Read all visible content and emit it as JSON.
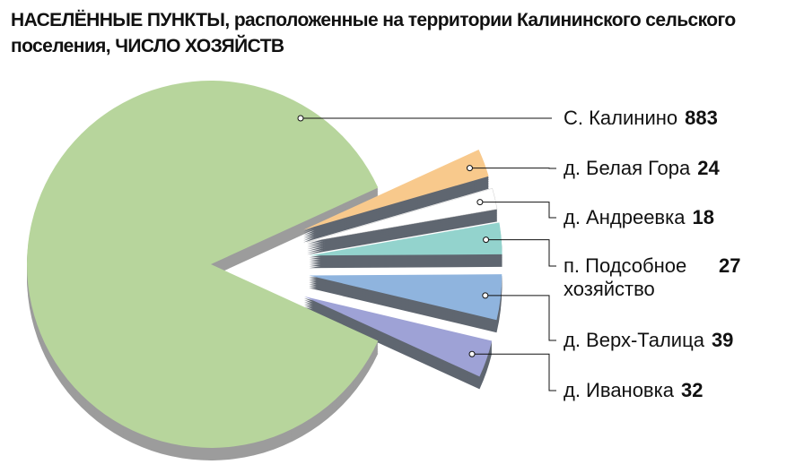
{
  "chart_data": {
    "type": "pie",
    "title": "НАСЕЛЁННЫЕ ПУНКТЫ, расположенные на территории Калининского сельского поселения, ЧИСЛО ХОЗЯЙСТВ",
    "categories": [
      "С. Калинино",
      "д. Белая Гора",
      "д. Андреевка",
      "п. Подсобное хозяйство",
      "д. Верх-Талица",
      "д. Ивановка"
    ],
    "values": [
      883,
      24,
      18,
      27,
      39,
      32
    ],
    "colors": [
      "#b7d59c",
      "#f8c98c",
      "#ffffff",
      "#93d3cd",
      "#8fb4de",
      "#9ea2d6"
    ]
  }
}
